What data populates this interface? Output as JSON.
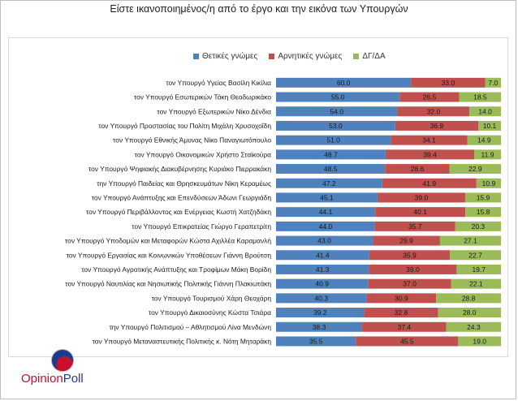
{
  "title": "Είστε ικανοποιημένος/η από το έργο και την εικόνα των Υπουργών",
  "logo": {
    "part1": "Opinion",
    "part2": "Poll"
  },
  "colors": {
    "positive": "#4f81bd",
    "negative": "#c0504d",
    "dk": "#9bbb59"
  },
  "chart_data": {
    "type": "bar",
    "stacked": true,
    "orientation": "horizontal",
    "categories": [
      "τον Υπουργό Υγείας Βασίλη Κικίλια",
      "τον Υπουργό Εσωτερικών Τάκη Θεοδωρικάκο",
      "τον Υπουργό Εξωτερικών Νίκο Δένδια",
      "τον Υπουργό Προστασίας του Πολίτη Μιχάλη Χρυσοχοΐδη",
      "τον Υπουργό Εθνικής Άμυνας Νίκο Παναγιωτόπουλο",
      "τον Υπουργό Οικονομικών Χρήστο Σταϊκούρα",
      "τον Υπουργό Ψηφιακής Διακυβέρνησης Κυριάκο Πιερρακάκη",
      "την Υπουργό Παιδείας και Θρησκευμάτων Νίκη Κεραμέως",
      "τον Υπουργό Ανάπτυξης και Επενδύσεων Άδωνι Γεωργιάδη",
      "τον Υπουργό Περιβάλλοντος και Ενέργειας Κωστή Χατζηδάκη",
      "τον Υπουργό Επικρατείας Γιώργο Γεραπετρίτη",
      "τον Υπουργό Υποδομών και Μεταφορών Κώστα Αχιλλέα Καραμανλή",
      "τον Υπουργό Εργασίας και Κοινωνικών Υποθέσεων Γιάννη Βρούτση",
      "τον Υπουργό Αγροτικής Ανάπτυξης και Τροφίμων Μάκη Βορίδη",
      "τον Υπουργό Ναυτιλίας και Νησιωτικής Πολιτικής Γιάννη Πλακιωτάκη",
      "τον Υπουργό Τουρισμού Χάρη Θεοχάρη",
      "τον Υπουργό Δικαιοσύνης Κώστα Τσιάρα",
      "την Υπουργό Πολιτισμού – Αθλητισμού Λίνα Μενδώνη",
      "τον Υπουργό Μεταναστευτικής Πολιτικής κ. Νότη Μηταράκη"
    ],
    "series": [
      {
        "name": "Θετικές γνώμες",
        "values": [
          60.0,
          55.0,
          54.0,
          53.0,
          51.0,
          48.7,
          48.5,
          47.2,
          45.1,
          44.1,
          44.0,
          43.0,
          41.4,
          41.3,
          40.9,
          40.3,
          39.2,
          38.3,
          35.5
        ]
      },
      {
        "name": "Αρνητικές γνώμες",
        "values": [
          33.0,
          26.5,
          32.0,
          36.9,
          34.1,
          39.4,
          28.6,
          41.9,
          39.0,
          40.1,
          35.7,
          29.9,
          35.9,
          39.0,
          37.0,
          30.9,
          32.8,
          37.4,
          45.5
        ]
      },
      {
        "name": "ΔΓ/ΔΑ",
        "values": [
          7.0,
          18.5,
          14.0,
          10.1,
          14.9,
          11.9,
          22.9,
          10.9,
          15.9,
          15.8,
          20.3,
          27.1,
          22.7,
          19.7,
          22.1,
          28.8,
          28.0,
          24.3,
          19.0
        ]
      }
    ],
    "xlim": [
      0,
      100
    ],
    "legend_position": "top",
    "grid": false
  }
}
